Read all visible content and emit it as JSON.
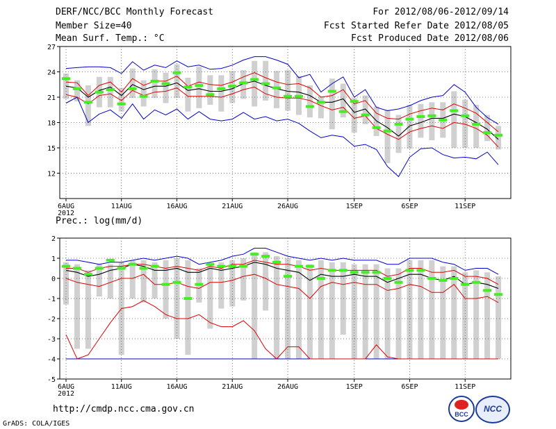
{
  "header": {
    "title": "DERF/NCC/BCC Monthly Forecast",
    "member_size": "Member Size=40",
    "variable": "Mean Surf. Temp.: °C",
    "forecast_range": "For 2012/08/06-2012/09/14",
    "fcst_started": "Fcst Started Refer Date 2012/08/05",
    "fcst_produced": "Fcst Produced Date 2012/08/06"
  },
  "footer": {
    "url": "http://cmdp.ncc.cma.gov.cn",
    "credit": "GrADS: COLA/IGES",
    "logo_left": "BCC",
    "logo_right": "NCC"
  },
  "colors": {
    "envelope": "#0000cc",
    "spread": "#dd0000",
    "mean": "#000000",
    "box": "#d0d0d0",
    "obs": "#44ee22"
  },
  "chart_data": [
    {
      "type": "box",
      "name": "temperature",
      "title": "Mean Surf. Temp.: °C",
      "days": 40,
      "x_tick_labels": [
        "6AUG",
        "11AUG",
        "16AUG",
        "21AUG",
        "26AUG",
        "1SEP",
        "6SEP",
        "11SEP"
      ],
      "x_tick_days": [
        0,
        5,
        10,
        15,
        20,
        26,
        31,
        36
      ],
      "year_label": "2012",
      "ylim": [
        9,
        27
      ],
      "yticks": [
        12,
        15,
        18,
        21,
        24,
        27
      ],
      "grid": true,
      "series": [
        {
          "name": "max",
          "color": "#0000cc",
          "values": [
            24.4,
            24.5,
            24.6,
            24.6,
            24.5,
            23.8,
            25.2,
            24.2,
            24.8,
            24.5,
            25.3,
            24.6,
            24.8,
            24.3,
            24.4,
            24.8,
            25.4,
            25.8,
            25.8,
            25.4,
            24.9,
            23.3,
            23.7,
            21.6,
            22.6,
            23.4,
            21.0,
            21.9,
            19.8,
            19.4,
            19.6,
            20.0,
            20.6,
            21.0,
            21.2,
            22.5,
            21.6,
            19.8,
            18.6,
            17.8
          ]
        },
        {
          "name": "upper",
          "color": "#dd0000",
          "values": [
            22.8,
            22.7,
            21.2,
            22.4,
            22.8,
            21.6,
            23.2,
            22.4,
            22.9,
            22.9,
            23.5,
            22.3,
            22.8,
            22.5,
            22.4,
            22.8,
            23.4,
            23.9,
            23.3,
            22.8,
            22.5,
            22.6,
            22.1,
            21.0,
            21.2,
            21.9,
            20.2,
            20.6,
            19.1,
            18.5,
            18.4,
            19.0,
            19.4,
            19.7,
            19.5,
            20.2,
            19.7,
            19.1,
            18.0,
            16.9
          ]
        },
        {
          "name": "mean",
          "color": "#000000",
          "values": [
            22.3,
            22.1,
            21.0,
            21.8,
            22.2,
            21.2,
            22.5,
            21.9,
            22.3,
            22.3,
            22.7,
            21.8,
            22.0,
            21.7,
            21.7,
            22.0,
            22.6,
            22.9,
            22.4,
            22.0,
            21.7,
            21.6,
            21.2,
            20.4,
            20.4,
            20.8,
            19.2,
            19.6,
            18.2,
            17.4,
            16.4,
            17.6,
            18.0,
            18.5,
            18.5,
            19.0,
            18.7,
            18.0,
            17.2,
            16.0
          ]
        },
        {
          "name": "lower",
          "color": "#dd0000",
          "values": [
            21.3,
            21.0,
            20.2,
            21.2,
            21.4,
            20.6,
            21.8,
            21.2,
            21.6,
            21.7,
            22.1,
            21.1,
            21.1,
            21.1,
            21.0,
            21.4,
            21.9,
            22.2,
            21.4,
            21.0,
            20.9,
            20.9,
            20.6,
            20.0,
            19.5,
            19.8,
            18.5,
            18.8,
            17.3,
            16.6,
            16.0,
            16.9,
            17.3,
            17.6,
            17.3,
            18.0,
            17.8,
            17.3,
            16.5,
            15.1
          ]
        },
        {
          "name": "min",
          "color": "#0000cc",
          "values": [
            20.3,
            21.0,
            18.0,
            19.0,
            19.5,
            18.5,
            20.2,
            18.4,
            19.5,
            18.9,
            19.6,
            18.4,
            19.3,
            18.4,
            18.2,
            18.4,
            19.2,
            18.4,
            18.7,
            18.2,
            18.4,
            17.9,
            17.0,
            16.2,
            16.5,
            16.3,
            15.2,
            15.4,
            14.8,
            12.8,
            11.6,
            13.9,
            14.9,
            15.0,
            14.2,
            13.8,
            13.9,
            13.7,
            14.5,
            13.0
          ]
        },
        {
          "name": "box_high",
          "color": "#d0d0d0",
          "values": [
            23.8,
            23.0,
            22.4,
            23.4,
            23.4,
            22.1,
            24.4,
            23.0,
            24.3,
            23.9,
            24.9,
            23.3,
            24.6,
            23.6,
            23.6,
            24.1,
            24.2,
            25.3,
            25.3,
            24.1,
            24.2,
            23.5,
            22.4,
            21.1,
            23.2,
            22.6,
            20.9,
            21.2,
            19.9,
            19.5,
            18.9,
            20.1,
            20.2,
            20.4,
            20.4,
            21.7,
            20.7,
            20.1,
            18.9,
            17.6
          ]
        },
        {
          "name": "box_low",
          "color": "#d0d0d0",
          "values": [
            20.8,
            20.5,
            17.6,
            19.8,
            19.8,
            19.3,
            20.9,
            19.9,
            20.9,
            20.3,
            20.9,
            19.3,
            19.7,
            20.1,
            19.3,
            20.3,
            20.8,
            19.9,
            20.6,
            19.7,
            19.4,
            18.9,
            18.6,
            18.5,
            17.2,
            18.6,
            16.8,
            17.8,
            16.4,
            13.2,
            14.4,
            14.9,
            16.2,
            15.9,
            16.2,
            15.0,
            15.0,
            15.0,
            15.8,
            14.8
          ]
        },
        {
          "name": "observed",
          "color": "#44ee22",
          "values": [
            23.2,
            22.0,
            20.4,
            21.6,
            21.9,
            20.2,
            22.0,
            21.1,
            22.9,
            22.6,
            23.9,
            22.2,
            22.4,
            21.3,
            22.0,
            22.3,
            22.7,
            23.1,
            22.6,
            22.1,
            21.1,
            21.1,
            19.9,
            20.4,
            21.7,
            19.3,
            20.5,
            18.9,
            17.4,
            17.0,
            17.8,
            18.4,
            18.7,
            18.8,
            18.3,
            19.4,
            18.8,
            17.8,
            16.8,
            16.5
          ]
        }
      ]
    },
    {
      "type": "box",
      "name": "precipitation",
      "title": "Prec.: log(mm/d)",
      "days": 40,
      "x_tick_labels": [
        "6AUG",
        "11AUG",
        "16AUG",
        "21AUG",
        "26AUG",
        "1SEP",
        "6SEP",
        "11SEP"
      ],
      "x_tick_days": [
        0,
        5,
        10,
        15,
        20,
        26,
        31,
        36
      ],
      "year_label": "2012",
      "ylim": [
        -5,
        2
      ],
      "yticks": [
        -5,
        -4,
        -3,
        -2,
        -1,
        0,
        1,
        2
      ],
      "grid": true,
      "series": [
        {
          "name": "max",
          "color": "#0000cc",
          "values": [
            0.9,
            0.9,
            0.8,
            0.7,
            0.8,
            0.8,
            0.9,
            1.0,
            0.9,
            1.0,
            1.1,
            1.0,
            0.7,
            0.8,
            0.9,
            1.1,
            1.2,
            1.5,
            1.5,
            1.3,
            1.1,
            1.0,
            0.9,
            1.0,
            0.9,
            1.0,
            0.9,
            0.9,
            0.9,
            0.7,
            0.7,
            1.0,
            1.0,
            1.0,
            0.8,
            0.7,
            0.4,
            0.5,
            0.5,
            0.2
          ]
        },
        {
          "name": "upper",
          "color": "#dd0000",
          "values": [
            0.5,
            0.5,
            0.3,
            0.5,
            0.6,
            0.6,
            0.7,
            0.7,
            0.6,
            0.5,
            0.6,
            0.5,
            0.4,
            0.6,
            0.5,
            0.7,
            0.7,
            0.9,
            0.8,
            0.7,
            0.7,
            0.6,
            0.4,
            0.5,
            0.4,
            0.4,
            0.4,
            0.4,
            0.4,
            0.1,
            0.2,
            0.5,
            0.5,
            0.3,
            0.3,
            0.4,
            0.1,
            0.1,
            0.0,
            -0.3
          ]
        },
        {
          "name": "mean",
          "color": "#000000",
          "values": [
            0.4,
            0.3,
            0.1,
            0.2,
            0.4,
            0.5,
            0.7,
            0.6,
            0.4,
            0.4,
            0.5,
            0.3,
            0.3,
            0.5,
            0.4,
            0.5,
            0.6,
            0.8,
            0.7,
            0.5,
            0.4,
            0.3,
            -0.1,
            0.2,
            0.1,
            0.1,
            0.2,
            0.1,
            0.1,
            -0.2,
            0.0,
            0.2,
            0.2,
            0.0,
            -0.1,
            0.1,
            -0.3,
            -0.2,
            -0.3,
            -0.5
          ]
        },
        {
          "name": "lower",
          "color": "#dd0000",
          "values": [
            0.0,
            -0.2,
            -0.3,
            -0.4,
            -0.2,
            0.0,
            0.0,
            0.2,
            -0.3,
            -0.3,
            -0.2,
            -0.4,
            -0.5,
            -0.2,
            -0.2,
            -0.1,
            0.1,
            0.2,
            0.0,
            -0.3,
            -0.4,
            -0.5,
            -1.0,
            -0.4,
            -0.2,
            -0.3,
            -0.2,
            -0.3,
            -0.3,
            -0.6,
            -0.5,
            -0.3,
            -0.4,
            -0.7,
            -0.7,
            -0.3,
            -1.0,
            -1.0,
            -0.9,
            -1.2
          ]
        },
        {
          "name": "min",
          "color": "#dd0000",
          "values": [
            -2.8,
            -4.0,
            -3.8,
            -3.0,
            -2.2,
            -1.5,
            -1.4,
            -1.1,
            -1.4,
            -1.8,
            -2.0,
            -2.0,
            -1.8,
            -2.2,
            -2.4,
            -2.4,
            -2.1,
            -2.6,
            -3.5,
            -4.0,
            -3.4,
            -3.4,
            -4.0,
            -4.0,
            -4.0,
            -4.0,
            -4.0,
            -4.0,
            -3.3,
            -3.9,
            -4.0,
            -4.0,
            -4.0,
            -4.0,
            -4.0,
            -4.0,
            -4.0,
            -4.0,
            -4.0,
            -4.0
          ]
        },
        {
          "name": "floor",
          "color": "#0000cc",
          "values": [
            -4.0,
            -4.0,
            -4.0,
            -4.0,
            -4.0,
            -4.0,
            -4.0,
            -4.0,
            -4.0,
            -4.0,
            -4.0,
            -4.0,
            -4.0,
            -4.0,
            -4.0,
            -4.0,
            -4.0,
            -4.0,
            -4.0,
            -4.0,
            -4.0,
            -4.0,
            -4.0,
            -4.0,
            -4.0,
            -4.0,
            -4.0,
            -4.0,
            -4.0,
            -4.0,
            -4.0,
            -4.0,
            -4.0,
            -4.0,
            -4.0,
            -4.0,
            -4.0,
            -4.0,
            -4.0,
            -4.0
          ]
        },
        {
          "name": "box_high",
          "color": "#d0d0d0",
          "values": [
            0.8,
            0.7,
            0.4,
            0.7,
            0.7,
            0.8,
            0.9,
            0.9,
            0.8,
            0.9,
            1.0,
            0.9,
            0.5,
            0.7,
            0.8,
            0.9,
            1.0,
            1.3,
            1.3,
            1.1,
            1.0,
            0.9,
            0.7,
            0.9,
            0.8,
            0.8,
            0.7,
            0.7,
            0.7,
            0.5,
            0.5,
            0.9,
            0.9,
            0.9,
            0.6,
            0.6,
            0.3,
            0.4,
            0.3,
            0.1
          ]
        },
        {
          "name": "box_low",
          "color": "#d0d0d0",
          "values": [
            -1.3,
            -3.5,
            -3.5,
            -0.9,
            -1.0,
            -3.8,
            -1.0,
            -1.2,
            -1.0,
            -2.0,
            -3.0,
            -3.8,
            -1.2,
            -2.5,
            -1.5,
            -1.4,
            -1.1,
            -4.0,
            -1.6,
            -4.0,
            -4.0,
            -4.0,
            -4.0,
            -4.0,
            -4.0,
            -2.8,
            -4.0,
            -4.0,
            -4.0,
            -4.0,
            -4.0,
            -4.0,
            -4.0,
            -4.0,
            -4.0,
            -4.0,
            -4.0,
            -4.0,
            -4.0,
            -4.0
          ]
        },
        {
          "name": "observed",
          "color": "#44ee22",
          "values": [
            0.6,
            0.5,
            0.2,
            0.5,
            0.9,
            0.5,
            0.7,
            0.5,
            0.6,
            -0.3,
            -0.2,
            -1.0,
            -0.3,
            0.7,
            0.6,
            0.6,
            0.6,
            1.2,
            1.1,
            0.8,
            0.1,
            0.6,
            0.6,
            0.0,
            0.4,
            0.4,
            0.3,
            0.3,
            0.3,
            0.0,
            -0.2,
            0.4,
            0.4,
            0.0,
            -0.1,
            0.0,
            -0.3,
            -0.2,
            -0.6,
            -0.8
          ]
        }
      ]
    }
  ]
}
